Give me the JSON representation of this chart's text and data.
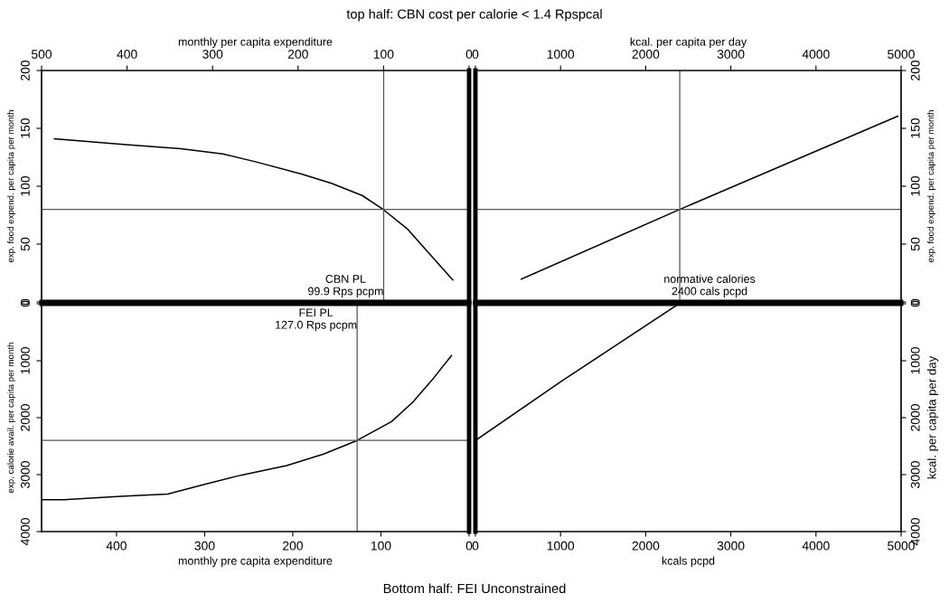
{
  "chart_data": [
    {
      "type": "line",
      "title": "top half: CBN cost per calorie < 1.4 Rpspcal",
      "xlabel": "monthly per capita expenditure",
      "ylabel": "exp. food expend. per capita per month",
      "xlim": [
        500,
        0
      ],
      "ylim": [
        0,
        200
      ],
      "xticks": [
        500,
        400,
        300,
        200,
        100,
        0
      ],
      "yticks": [
        0,
        50,
        100,
        150,
        200
      ],
      "series": [
        {
          "color": "#000000",
          "x": [
            485,
            401,
            337,
            288,
            249,
            196,
            161,
            125,
            100,
            72,
            48,
            19
          ],
          "values": [
            141,
            136,
            132.4,
            128,
            121,
            110.5,
            102.6,
            92,
            79.7,
            63,
            43,
            19
          ]
        }
      ],
      "ref_lines": [
        {
          "axis": "y",
          "value": 80,
          "color": "#555555"
        },
        {
          "axis": "x",
          "value": 99.9,
          "label": "CBN PL\n99.9 Rps pcpm",
          "color": "#555555"
        }
      ]
    },
    {
      "type": "line",
      "xlabel": "kcal. per capita per day",
      "ylabel": "exp. food expend. per capita per month",
      "xlim": [
        0,
        5000
      ],
      "ylim": [
        0,
        200
      ],
      "xticks": [
        0,
        1000,
        2000,
        3000,
        4000,
        5000
      ],
      "yticks": [
        0,
        50,
        100,
        150,
        200
      ],
      "series": [
        {
          "color": "#000000",
          "x": [
            540,
            2400,
            4960
          ],
          "values": [
            19.7,
            80,
            160.5
          ]
        }
      ],
      "ref_lines": [
        {
          "axis": "y",
          "value": 80,
          "color": "#555555"
        },
        {
          "axis": "x",
          "value": 2400,
          "label": "normative calories\n2400 cals pcpd",
          "color": "#555555"
        }
      ]
    },
    {
      "type": "line",
      "xlabel": "monthly pre capita expenditure",
      "ylabel": "exp. calorie avail. per capita per month",
      "xlim": [
        485,
        0
      ],
      "ylim": [
        4000,
        0
      ],
      "xticks": [
        400,
        300,
        200,
        100,
        0
      ],
      "yticks": [
        0,
        1000,
        2000,
        3000,
        4000
      ],
      "annotations": [
        "Bottom half: FEI Unconstrained"
      ],
      "series": [
        {
          "color": "#000000",
          "x": [
            484,
            460,
            395,
            342,
            300,
            259,
            207,
            165,
            127,
            88,
            64,
            40,
            20
          ],
          "values": [
            3440,
            3440,
            3380,
            3340,
            3170,
            3010,
            2840,
            2640,
            2400,
            2070,
            1730,
            1300,
            910
          ]
        }
      ],
      "ref_lines": [
        {
          "axis": "y",
          "value": 2400,
          "color": "#555555"
        },
        {
          "axis": "x",
          "value": 127.0,
          "label": "FEI PL\n127.0 Rps pcpm",
          "color": "#555555"
        }
      ]
    },
    {
      "type": "line",
      "xlabel": "kcals pcpd",
      "ylabel": "kcal. per capita per day",
      "xlim": [
        0,
        5000
      ],
      "ylim": [
        4000,
        0
      ],
      "xticks": [
        0,
        1000,
        2000,
        3000,
        4000,
        5000
      ],
      "yticks": [
        0,
        1000,
        2000,
        3000,
        4000
      ],
      "series": [
        {
          "color": "#000000",
          "x": [
            0,
            1000,
            2390
          ],
          "values": [
            2400,
            1370,
            0
          ]
        }
      ]
    }
  ]
}
